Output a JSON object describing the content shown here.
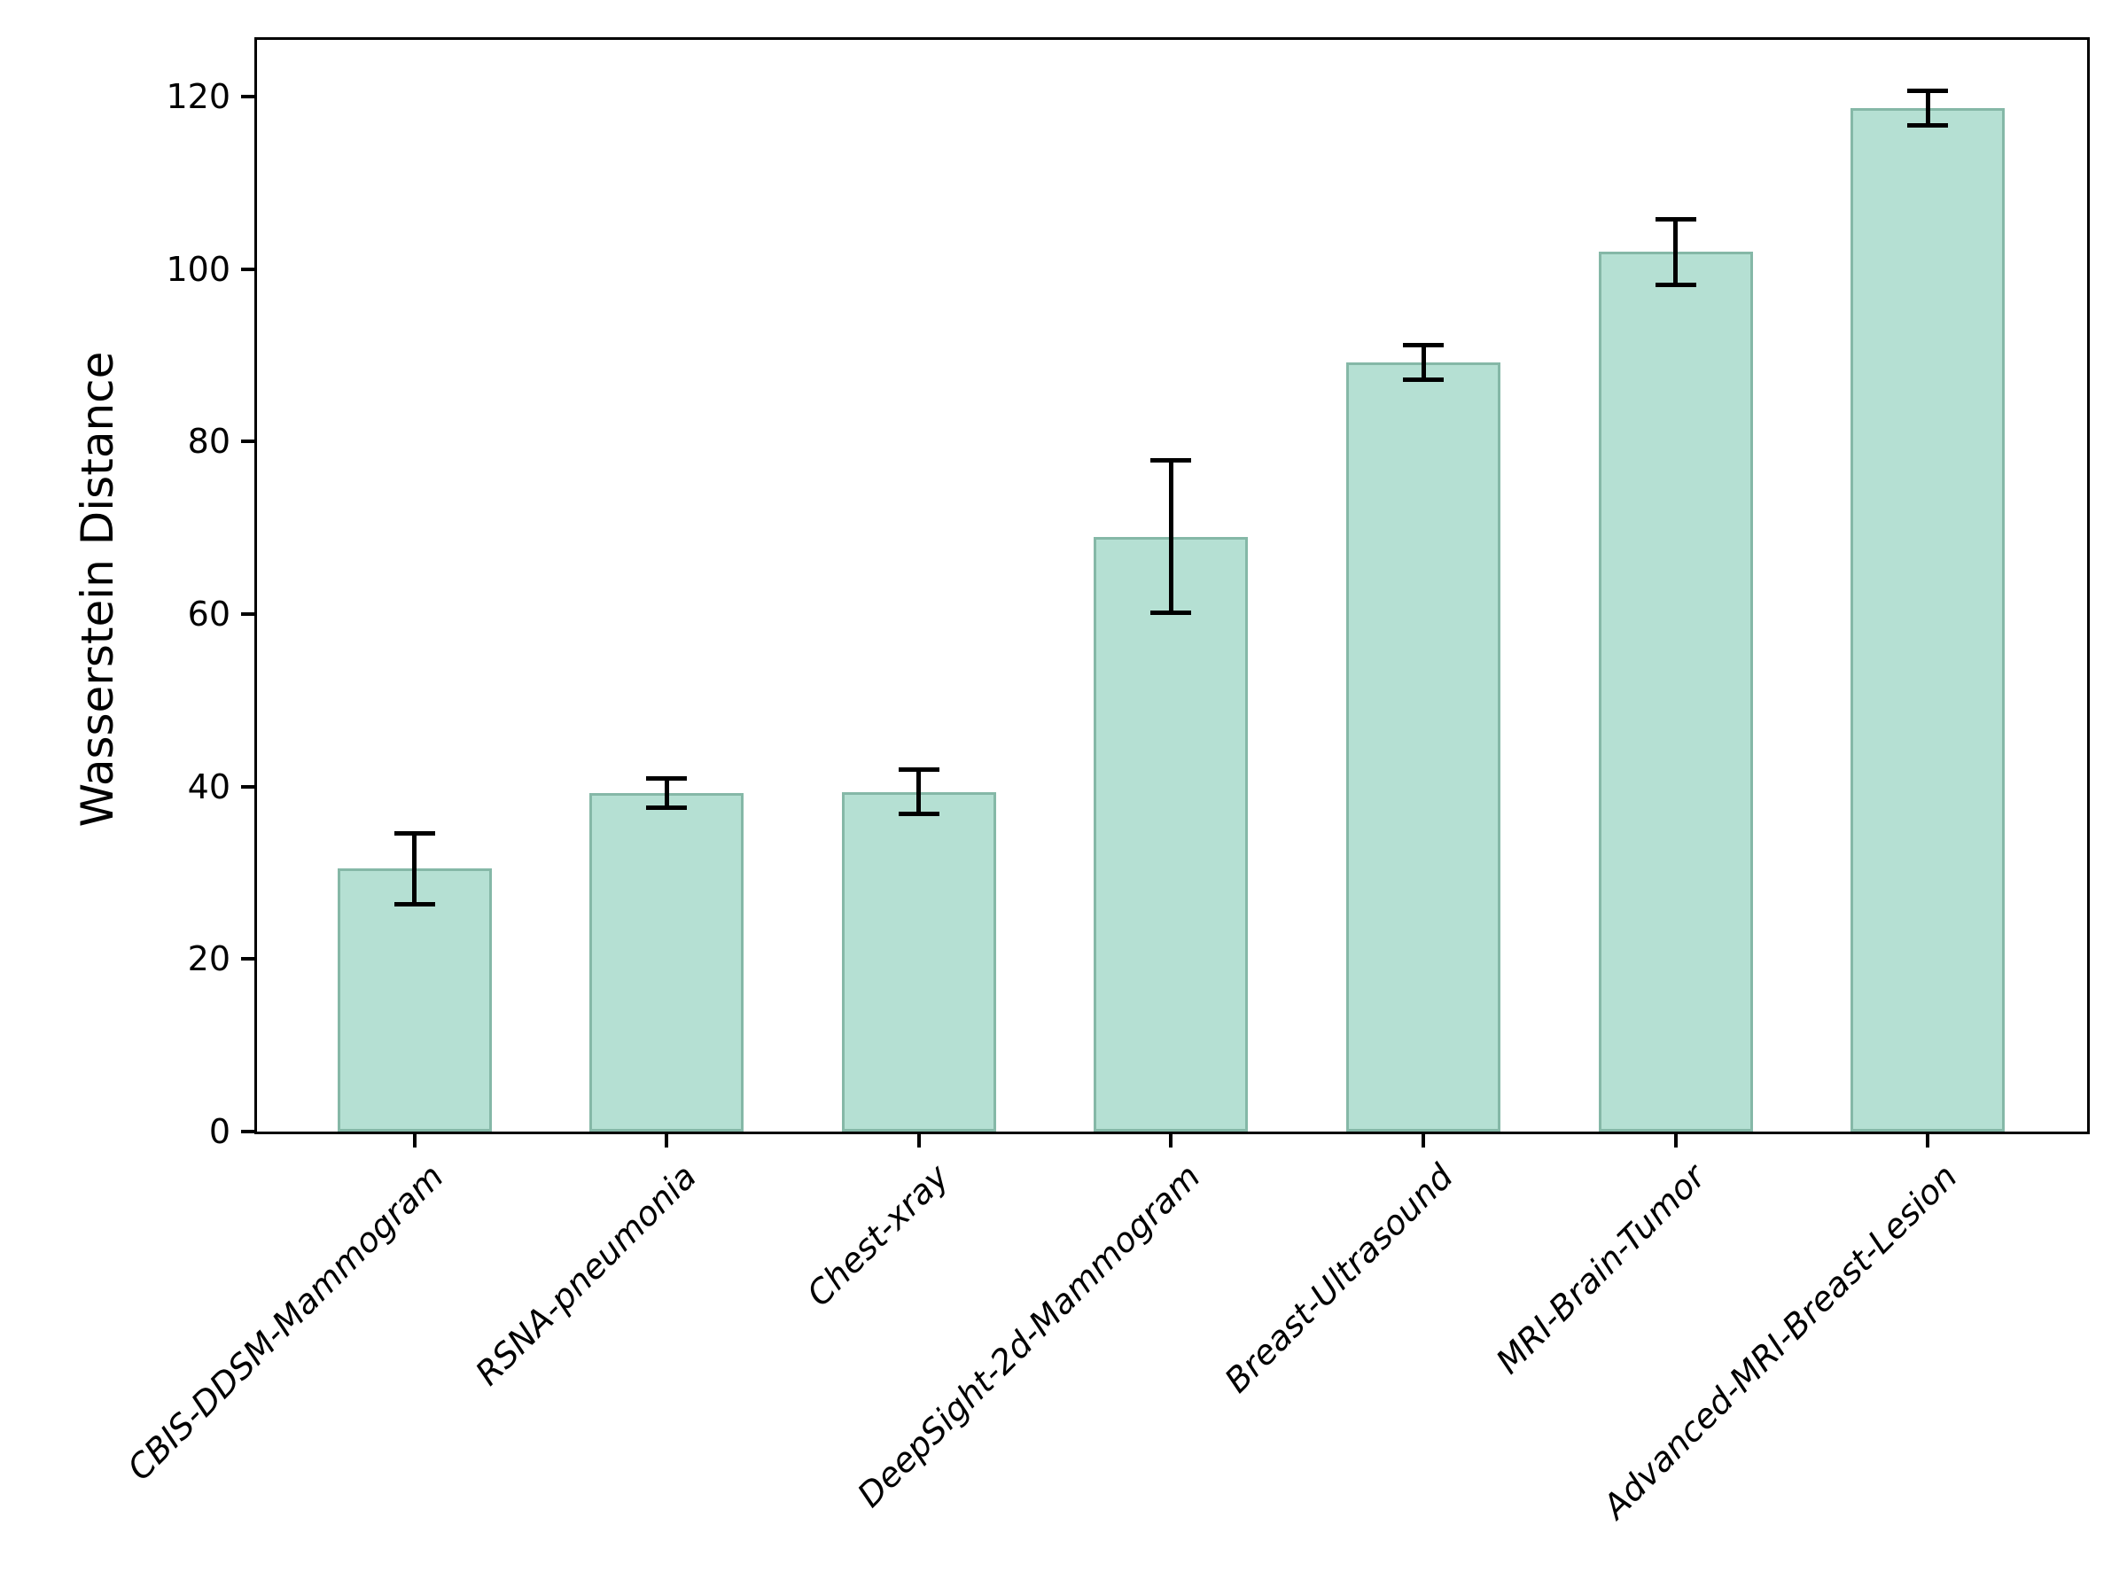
{
  "figure": {
    "background": "#ffffff"
  },
  "chart_data": {
    "type": "bar",
    "title": "",
    "xlabel": "",
    "ylabel": "Wasserstein Distance",
    "ylim": [
      0,
      126.6
    ],
    "yticks": [
      "0",
      "20",
      "40",
      "60",
      "80",
      "100",
      "120"
    ],
    "ytick_values": [
      0,
      20,
      40,
      60,
      80,
      100,
      120
    ],
    "grid": false,
    "legend": null,
    "categories": [
      "CBIS-DDSM-Mammogram",
      "RSNA-pneumonia",
      "Chest-xray",
      "DeepSight-2d-Mammogram",
      "Breast-Ultrasound",
      "MRI-Brain-Tumor",
      "Advanced-MRI-Breast-Lesion"
    ],
    "series": [
      {
        "name": "Wasserstein Distance",
        "values": [
          30.5,
          39.3,
          39.4,
          69.0,
          89.2,
          102.0,
          118.7
        ],
        "errors": [
          4.1,
          1.7,
          2.6,
          8.8,
          2.0,
          3.8,
          2.0
        ]
      }
    ],
    "colors": {
      "bar_fill": "#b5e0d3",
      "bar_edge": "#85b8a7",
      "error_bar": "#000000",
      "axis": "#000000",
      "text": "#000000"
    }
  }
}
